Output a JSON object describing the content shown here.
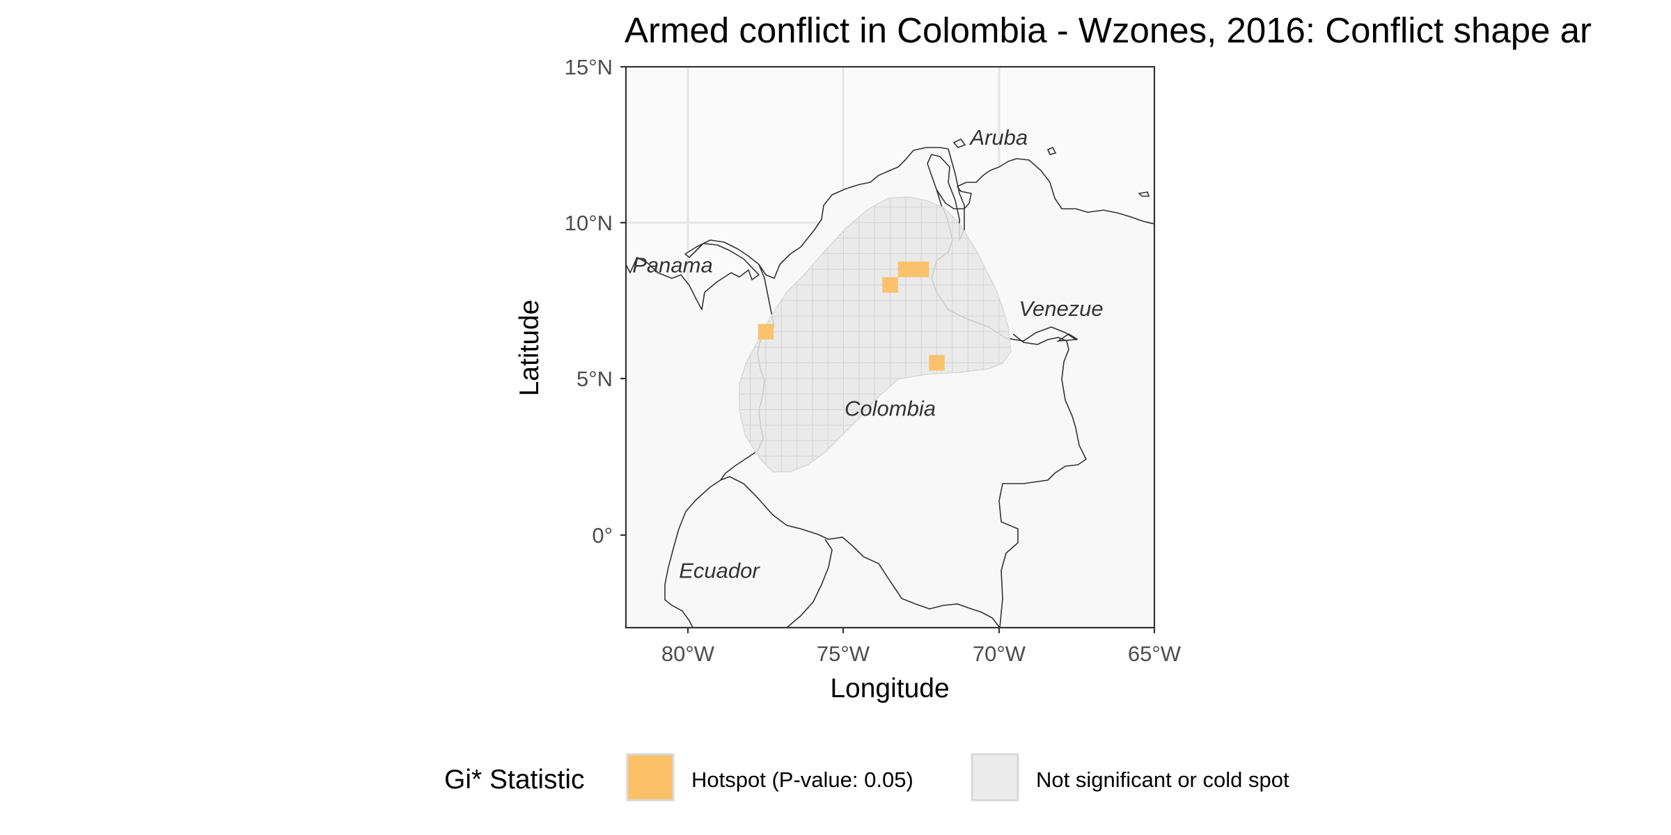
{
  "title": "Armed conflict in Colombia - Wzones, 2016: Conflict shape ar",
  "axes": {
    "xlabel": "Longitude",
    "ylabel": "Latitude",
    "x_ticks": [
      "80°W",
      "75°W",
      "70°W",
      "65°W"
    ],
    "y_ticks": [
      "15°N",
      "10°N",
      "5°N",
      "0°"
    ],
    "x_range": [
      -82,
      -65
    ],
    "y_range": [
      -3,
      15
    ]
  },
  "places": [
    {
      "name": "Aruba",
      "lon": -70.0,
      "lat": 12.5
    },
    {
      "name": "Panama",
      "lon": -80.5,
      "lat": 8.4
    },
    {
      "name": "Venezue",
      "lon": -68.0,
      "lat": 7.0
    },
    {
      "name": "Colombia",
      "lon": -73.5,
      "lat": 3.8
    },
    {
      "name": "Ecuador",
      "lon": -79.0,
      "lat": -1.4
    }
  ],
  "hotspots": [
    {
      "lon": -73.0,
      "lat": 8.5
    },
    {
      "lon": -72.5,
      "lat": 8.5
    },
    {
      "lon": -73.5,
      "lat": 8.0
    },
    {
      "lon": -77.5,
      "lat": 6.5
    },
    {
      "lon": -72.0,
      "lat": 5.5
    }
  ],
  "legend": {
    "title": "Gi* Statistic",
    "items": [
      {
        "label": "Hotspot (P-value: 0.05)",
        "color": "#fcc066"
      },
      {
        "label": "Not significant or cold spot",
        "color": "#ebebeb"
      }
    ]
  },
  "colors": {
    "panel_background": "#fafafa",
    "conflict_area": "#e8e8e8",
    "hotspot": "#fcc066",
    "gridline": "#e5e5e5",
    "coastline": "#333333"
  }
}
